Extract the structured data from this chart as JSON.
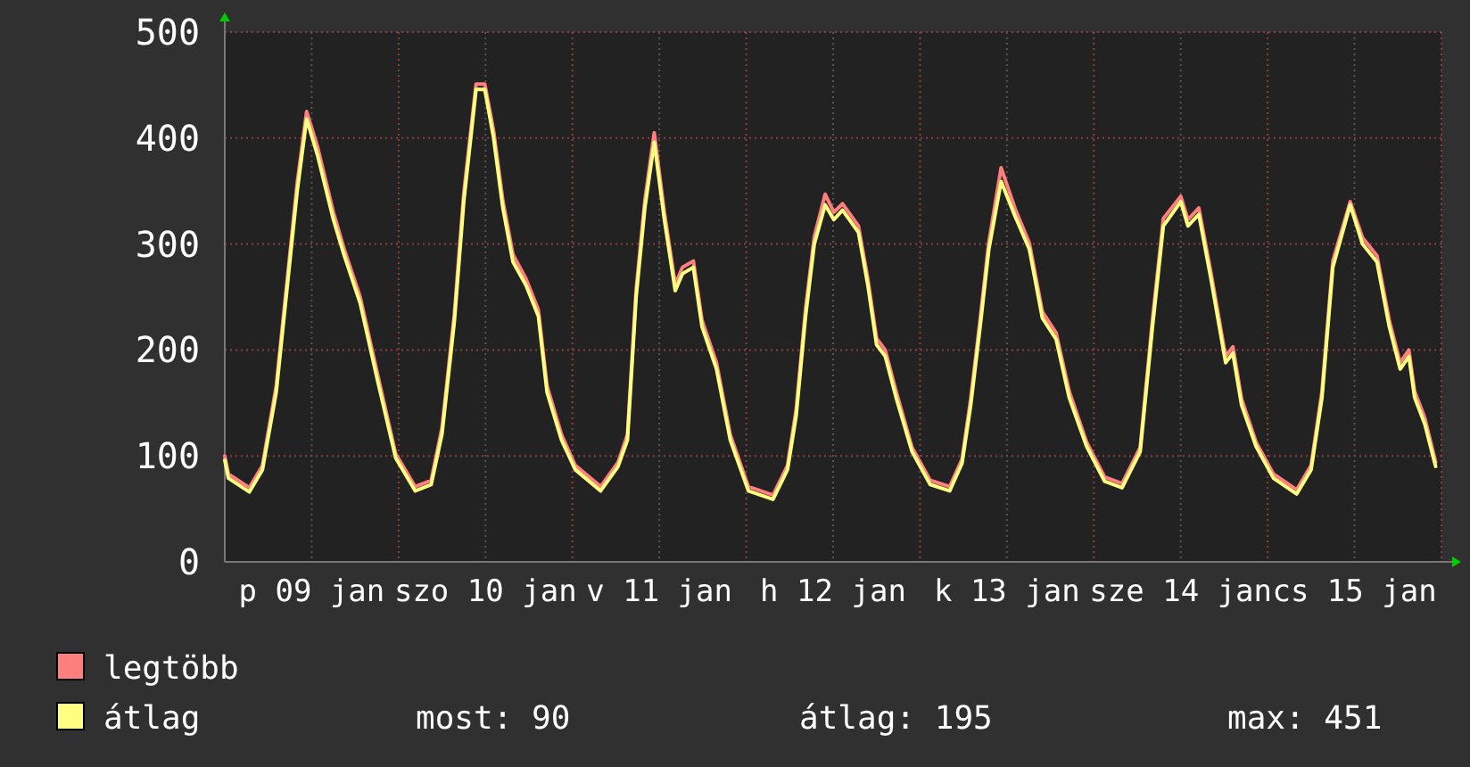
{
  "chart_data": {
    "type": "line",
    "xlim": [
      "--01-09T00:00",
      "--01-16T00:00"
    ],
    "xticks": [
      {
        "value": "--01-09T00:00",
        "label": null
      },
      {
        "value": "--01-09T12:00",
        "label": "p 09 jan"
      },
      {
        "value": "--01-10T00:00",
        "label": null
      },
      {
        "value": "--01-10T12:00",
        "label": "szo 10 jan"
      },
      {
        "value": "--01-11T00:00",
        "label": null
      },
      {
        "value": "--01-11T12:00",
        "label": "v 11 jan"
      },
      {
        "value": "--01-12T00:00",
        "label": null
      },
      {
        "value": "--01-12T12:00",
        "label": "h 12 jan"
      },
      {
        "value": "--01-13T00:00",
        "label": null
      },
      {
        "value": "--01-13T12:00",
        "label": "k 13 jan"
      },
      {
        "value": "--01-14T00:00",
        "label": null
      },
      {
        "value": "--01-14T12:00",
        "label": "sze 14 jan"
      },
      {
        "value": "--01-15T00:00",
        "label": null
      },
      {
        "value": "--01-15T12:00",
        "label": "cs 15 jan"
      },
      {
        "value": "--01-16T00:00",
        "label": null
      }
    ],
    "ylim": [
      0,
      500
    ],
    "yticks": [
      0,
      100,
      200,
      300,
      400,
      500
    ],
    "grid": true,
    "legend": "bottom",
    "line_style": "solid",
    "marker": "none",
    "x": [
      "--01-09T00:00",
      "--01-09T00:30",
      "--01-09T03:24",
      "--01-09T05:12",
      "--01-09T07:06",
      "--01-09T08:54",
      "--01-09T10:00",
      "--01-09T11:18",
      "--01-09T12:48",
      "--01-09T15:00",
      "--01-09T16:30",
      "--01-09T18:42",
      "--01-09T21:06",
      "--01-09T23:36",
      "--01-10T02:18",
      "--01-10T04:30",
      "--01-10T06:00",
      "--01-10T07:42",
      "--01-10T09:00",
      "--01-10T10:42",
      "--01-10T11:54",
      "--01-10T13:06",
      "--01-10T14:24",
      "--01-10T15:48",
      "--01-10T17:36",
      "--01-10T19:18",
      "--01-10T20:30",
      "--01-10T22:30",
      "--01-11T00:24",
      "--01-11T03:54",
      "--01-11T06:18",
      "--01-11T07:36",
      "--01-11T08:48",
      "--01-11T10:00",
      "--01-11T11:18",
      "--01-11T12:42",
      "--01-11T14:12",
      "--01-11T15:12",
      "--01-11T16:42",
      "--01-11T17:54",
      "--01-11T19:54",
      "--01-11T21:48",
      "--01-12T00:18",
      "--01-12T03:42",
      "--01-12T05:42",
      "--01-12T06:54",
      "--01-12T08:12",
      "--01-12T09:24",
      "--01-12T10:54",
      "--01-12T12:06",
      "--01-12T13:18",
      "--01-12T15:30",
      "--01-12T16:48",
      "--01-12T18:00",
      "--01-12T19:12",
      "--01-12T20:42",
      "--01-12T22:54",
      "--01-13T01:24",
      "--01-13T04:06",
      "--01-13T05:48",
      "--01-13T07:00",
      "--01-13T08:18",
      "--01-13T09:30",
      "--01-13T11:12",
      "--01-13T13:12",
      "--01-13T15:06",
      "--01-13T16:54",
      "--01-13T18:48",
      "--01-13T20:36",
      "--01-13T23:00",
      "--01-14T01:30",
      "--01-14T03:54",
      "--01-14T06:24",
      "--01-14T08:06",
      "--01-14T09:36",
      "--01-14T12:00",
      "--01-14T13:00",
      "--01-14T14:30",
      "--01-14T16:12",
      "--01-14T18:12",
      "--01-14T19:12",
      "--01-14T20:24",
      "--01-14T22:24",
      "--01-15T00:48",
      "--01-15T04:00",
      "--01-15T06:00",
      "--01-15T07:30",
      "--01-15T09:00",
      "--01-15T11:24",
      "--01-15T13:06",
      "--01-15T15:06",
      "--01-15T16:48",
      "--01-15T18:18",
      "--01-15T19:30",
      "--01-15T20:18",
      "--01-15T21:42",
      "--01-15T23:12"
    ],
    "series": [
      {
        "name": "legtöbb",
        "color": "#ff7f7f",
        "values": [
          100,
          83,
          70,
          91,
          166,
          285,
          358,
          425,
          392,
          330,
          295,
          250,
          177,
          102,
          71,
          77,
          127,
          234,
          348,
          451,
          451,
          408,
          341,
          290,
          267,
          238,
          166,
          120,
          91,
          71,
          94,
          120,
          257,
          341,
          405,
          330,
          262,
          278,
          284,
          228,
          188,
          120,
          71,
          63,
          91,
          144,
          239,
          307,
          347,
          330,
          338,
          317,
          267,
          211,
          200,
          161,
          108,
          77,
          71,
          97,
          154,
          229,
          302,
          372,
          332,
          301,
          236,
          216,
          161,
          113,
          80,
          74,
          108,
          229,
          324,
          345,
          323,
          334,
          272,
          194,
          203,
          154,
          113,
          83,
          68,
          91,
          161,
          284,
          340,
          306,
          289,
          228,
          188,
          200,
          161,
          136,
          94
        ]
      },
      {
        "name": "átlag",
        "color": "#ffff80",
        "values": [
          96,
          79,
          66,
          87,
          160,
          278,
          350,
          418,
          384,
          323,
          289,
          244,
          171,
          98,
          67,
          73,
          121,
          227,
          340,
          446,
          446,
          401,
          334,
          283,
          261,
          232,
          160,
          115,
          87,
          67,
          90,
          115,
          250,
          334,
          396,
          323,
          256,
          272,
          278,
          222,
          182,
          115,
          67,
          59,
          87,
          138,
          232,
          300,
          337,
          323,
          332,
          311,
          261,
          205,
          194,
          155,
          104,
          73,
          67,
          93,
          148,
          222,
          295,
          359,
          325,
          295,
          230,
          210,
          155,
          109,
          76,
          70,
          104,
          222,
          317,
          340,
          317,
          328,
          266,
          188,
          197,
          148,
          109,
          79,
          64,
          87,
          155,
          278,
          337,
          300,
          283,
          222,
          182,
          194,
          155,
          130,
          90
        ]
      }
    ],
    "annotations": [
      "most: 90",
      "átlag: 195",
      "max: 451"
    ]
  }
}
